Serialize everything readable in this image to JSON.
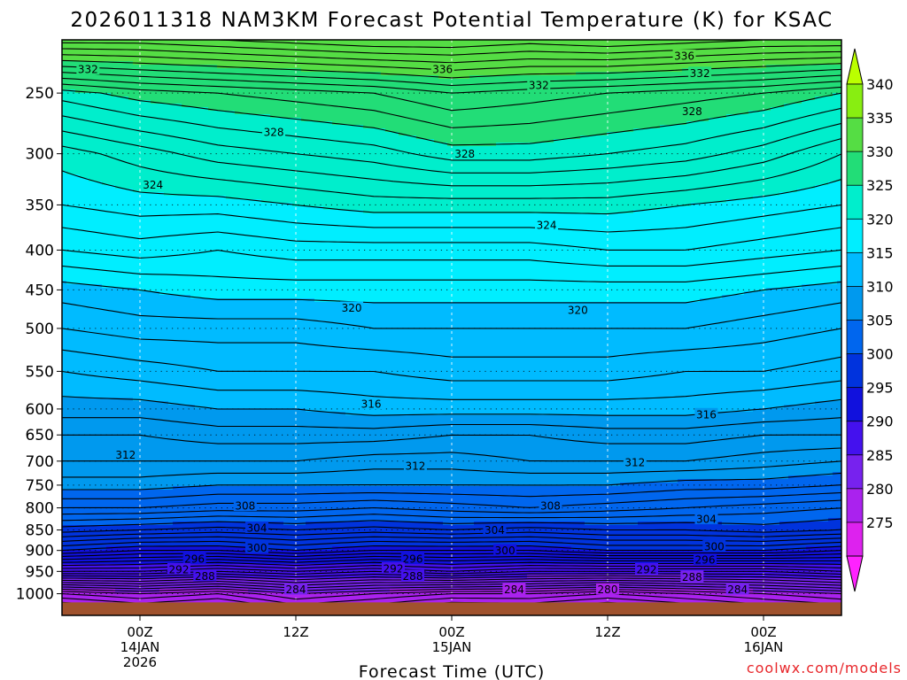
{
  "chart_data": {
    "type": "contour",
    "title": "2026011318 NAM3KM Forecast Potential Temperature (K) for KSAC",
    "xlabel": "Forecast Time (UTC)",
    "ylabel": "",
    "watermark": "coolwx.com/models",
    "x": {
      "unit": "forecast hour",
      "range": [
        0,
        60
      ],
      "ticks": [
        {
          "hour": 6,
          "lines": [
            "00Z",
            "14JAN",
            "2026"
          ]
        },
        {
          "hour": 18,
          "lines": [
            "12Z"
          ]
        },
        {
          "hour": 30,
          "lines": [
            "00Z",
            "15JAN"
          ]
        },
        {
          "hour": 42,
          "lines": [
            "12Z"
          ]
        },
        {
          "hour": 54,
          "lines": [
            "00Z",
            "16JAN"
          ]
        }
      ]
    },
    "y": {
      "unit": "hPa",
      "range": [
        1025,
        150
      ],
      "ticks": [
        250,
        300,
        350,
        400,
        450,
        500,
        550,
        600,
        650,
        700,
        750,
        800,
        850,
        900,
        950,
        1000
      ],
      "calibration": [
        [
          1025,
          0.0
        ],
        [
          1000,
          0.0376
        ],
        [
          950,
          0.0764
        ],
        [
          900,
          0.1128
        ],
        [
          850,
          0.1484
        ],
        [
          800,
          0.1868
        ],
        [
          750,
          0.2263
        ],
        [
          700,
          0.268
        ],
        [
          650,
          0.3135
        ],
        [
          600,
          0.3586
        ],
        [
          550,
          0.424
        ],
        [
          500,
          0.4986
        ],
        [
          450,
          0.5655
        ],
        [
          400,
          0.6347
        ],
        [
          350,
          0.7132
        ],
        [
          300,
          0.8021
        ],
        [
          250,
          0.9075
        ],
        [
          150,
          1.0
        ]
      ]
    },
    "colorbar": {
      "levels": [
        270,
        275,
        280,
        285,
        290,
        295,
        300,
        305,
        310,
        315,
        320,
        325,
        330,
        335,
        340,
        345
      ],
      "labels": [
        275,
        280,
        285,
        290,
        295,
        300,
        305,
        310,
        315,
        320,
        325,
        330,
        335,
        340
      ],
      "colors": [
        "#ff22ff",
        "#dd22ee",
        "#aa22ee",
        "#7722ee",
        "#4411ee",
        "#1111dd",
        "#0033dd",
        "#0066ee",
        "#0099ee",
        "#00bbff",
        "#00eeff",
        "#00eecc",
        "#22dd77",
        "#55dd44",
        "#88ee11",
        "#bbff00"
      ]
    },
    "profile_hours": [
      0,
      6,
      12,
      18,
      24,
      30,
      36,
      42,
      48,
      54,
      60
    ],
    "profiles": [
      {
        "p": 1000,
        "theta": [
          283,
          284,
          283,
          285,
          284,
          283,
          283,
          282,
          283,
          284,
          285
        ]
      },
      {
        "p": 950,
        "theta": [
          293,
          293,
          292,
          293,
          292,
          293,
          292,
          292,
          292,
          292,
          293
        ]
      },
      {
        "p": 900,
        "theta": [
          300,
          299,
          299,
          300,
          299,
          299,
          299,
          300,
          300,
          300,
          299
        ]
      },
      {
        "p": 850,
        "theta": [
          304.5,
          304,
          303.5,
          304,
          303.5,
          304,
          303.5,
          304,
          304,
          304.5,
          304
        ]
      },
      {
        "p": 800,
        "theta": [
          308,
          308,
          307.5,
          307.5,
          307,
          307.5,
          308,
          307.5,
          307,
          306.5,
          306
        ]
      },
      {
        "p": 750,
        "theta": [
          310.5,
          310.5,
          310,
          310,
          310,
          310,
          310,
          310,
          309.5,
          309.5,
          309
        ]
      },
      {
        "p": 700,
        "theta": [
          312,
          312,
          312,
          312,
          311.5,
          311.5,
          312,
          312,
          312,
          311.5,
          311
        ]
      },
      {
        "p": 650,
        "theta": [
          313,
          313,
          313.5,
          313.5,
          313.5,
          313,
          313,
          313.5,
          313.5,
          313,
          313
        ]
      },
      {
        "p": 600,
        "theta": [
          314.5,
          314.5,
          315,
          315,
          315.5,
          315.5,
          315.5,
          315.5,
          315.5,
          315,
          314.5
        ]
      },
      {
        "p": 550,
        "theta": [
          316,
          316.5,
          317,
          317,
          317,
          317.5,
          317.5,
          317.5,
          317,
          317,
          316.5
        ]
      },
      {
        "p": 500,
        "theta": [
          318,
          318.5,
          318.5,
          318.5,
          319,
          319,
          319,
          319,
          319,
          318.5,
          318
        ]
      },
      {
        "p": 450,
        "theta": [
          319.5,
          320,
          320.5,
          320.5,
          320.5,
          320.5,
          320.5,
          320.5,
          320.5,
          320,
          319.5
        ]
      },
      {
        "p": 400,
        "theta": [
          322,
          322.5,
          322,
          322.5,
          322.5,
          322.5,
          322.5,
          323,
          323,
          322.5,
          322
        ]
      },
      {
        "p": 350,
        "theta": [
          324,
          324.5,
          324.5,
          325,
          325.5,
          325.5,
          325.5,
          325.5,
          325,
          324.5,
          324
        ]
      },
      {
        "p": 300,
        "theta": [
          325.5,
          326.5,
          327.5,
          328,
          328.5,
          329.5,
          329.5,
          329,
          328.5,
          327.5,
          326
        ]
      },
      {
        "p": 250,
        "theta": [
          329.5,
          330.5,
          331,
          331.5,
          332,
          333,
          332.5,
          332,
          331.5,
          331,
          330
        ]
      },
      {
        "p": 200,
        "theta": [
          334,
          334.5,
          335,
          335.5,
          336,
          336.5,
          336,
          336,
          335.5,
          335,
          334.5
        ]
      }
    ],
    "contour_labels": [
      {
        "text": "336",
        "hour": 29.3,
        "p": 205
      },
      {
        "text": "336",
        "hour": 47.9,
        "p": 180
      },
      {
        "text": "332",
        "hour": 2.0,
        "p": 205
      },
      {
        "text": "332",
        "hour": 36.7,
        "p": 235
      },
      {
        "text": "332",
        "hour": 49.1,
        "p": 212
      },
      {
        "text": "328",
        "hour": 16.3,
        "p": 282
      },
      {
        "text": "328",
        "hour": 31.0,
        "p": 300
      },
      {
        "text": "328",
        "hour": 48.5,
        "p": 265
      },
      {
        "text": "324",
        "hour": 7.0,
        "p": 330
      },
      {
        "text": "324",
        "hour": 37.3,
        "p": 372
      },
      {
        "text": "320",
        "hour": 22.3,
        "p": 473
      },
      {
        "text": "320",
        "hour": 39.7,
        "p": 476
      },
      {
        "text": "316",
        "hour": 23.8,
        "p": 593
      },
      {
        "text": "316",
        "hour": 49.6,
        "p": 610
      },
      {
        "text": "312",
        "hour": 4.9,
        "p": 688
      },
      {
        "text": "312",
        "hour": 27.2,
        "p": 710
      },
      {
        "text": "312",
        "hour": 44.1,
        "p": 702
      },
      {
        "text": "308",
        "hour": 14.1,
        "p": 795
      },
      {
        "text": "308",
        "hour": 37.6,
        "p": 795
      },
      {
        "text": "304",
        "hour": 15.0,
        "p": 845
      },
      {
        "text": "304",
        "hour": 33.3,
        "p": 850
      },
      {
        "text": "304",
        "hour": 49.6,
        "p": 825
      },
      {
        "text": "300",
        "hour": 15.0,
        "p": 893
      },
      {
        "text": "300",
        "hour": 34.1,
        "p": 900
      },
      {
        "text": "300",
        "hour": 50.2,
        "p": 890
      },
      {
        "text": "296",
        "hour": 10.2,
        "p": 920
      },
      {
        "text": "296",
        "hour": 27.0,
        "p": 920
      },
      {
        "text": "296",
        "hour": 49.5,
        "p": 922
      },
      {
        "text": "292",
        "hour": 9.0,
        "p": 945
      },
      {
        "text": "292",
        "hour": 25.5,
        "p": 943
      },
      {
        "text": "292",
        "hour": 45.0,
        "p": 945
      },
      {
        "text": "288",
        "hour": 11.0,
        "p": 960
      },
      {
        "text": "288",
        "hour": 27.0,
        "p": 960
      },
      {
        "text": "288",
        "hour": 48.5,
        "p": 962
      },
      {
        "text": "284",
        "hour": 18.0,
        "p": 990
      },
      {
        "text": "284",
        "hour": 34.8,
        "p": 990
      },
      {
        "text": "280",
        "hour": 42.0,
        "p": 990
      },
      {
        "text": "284",
        "hour": 52.0,
        "p": 990
      }
    ],
    "terrain": {
      "color": "#a0522d",
      "surface_p": 1010
    }
  }
}
